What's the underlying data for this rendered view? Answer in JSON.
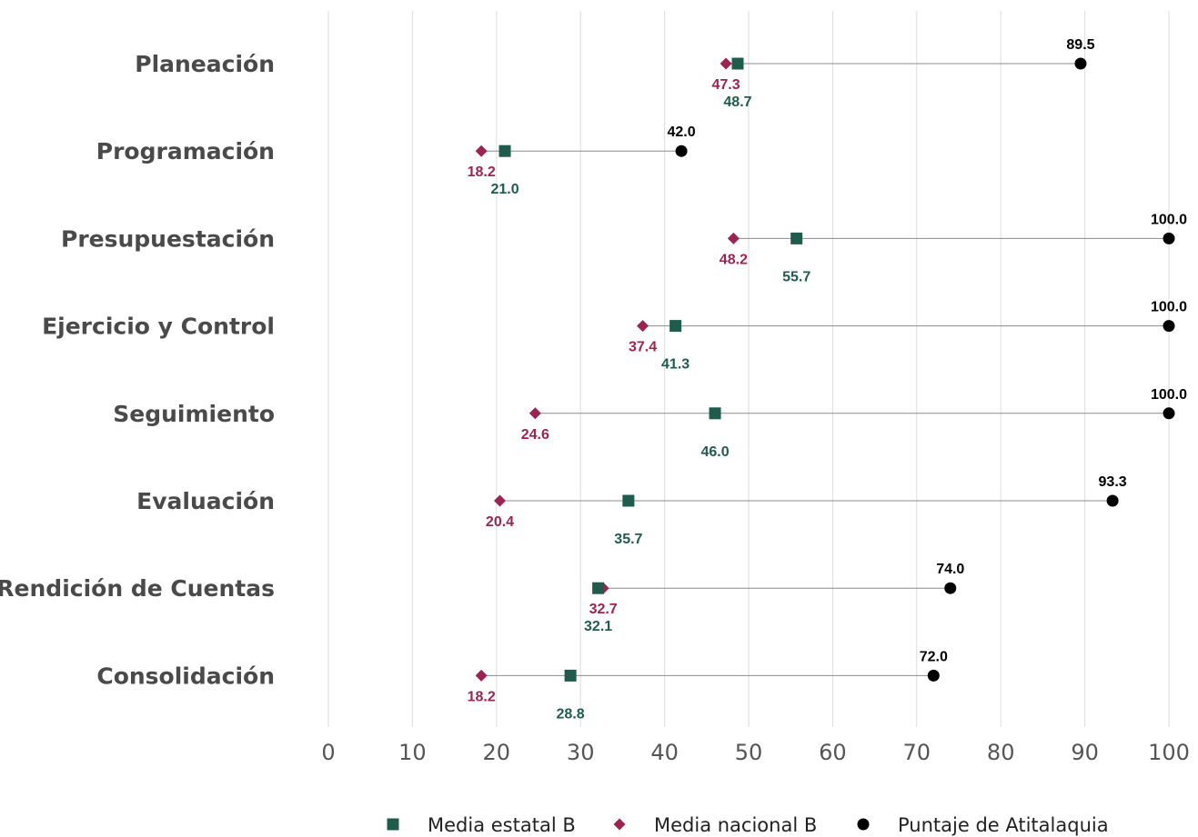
{
  "chart_data": {
    "type": "scatter",
    "categories": [
      "Planeación",
      "Programación",
      "Presupuestación",
      "Ejercicio y Control",
      "Seguimiento",
      "Evaluación",
      "Rendición de Cuentas",
      "Consolidación"
    ],
    "series": [
      {
        "name": "Media estatal B",
        "values": [
          48.7,
          21.0,
          55.7,
          41.3,
          46.0,
          35.7,
          32.1,
          28.8
        ],
        "color": "#1f5c4c",
        "marker": "square"
      },
      {
        "name": "Media nacional B",
        "values": [
          47.3,
          18.2,
          48.2,
          37.4,
          24.6,
          20.4,
          32.7,
          18.2
        ],
        "color": "#9b2452",
        "marker": "diamond"
      },
      {
        "name": "Puntaje de Atitalaquia",
        "values": [
          89.5,
          42.0,
          100.0,
          100.0,
          100.0,
          93.3,
          74.0,
          72.0
        ],
        "color": "#000000",
        "marker": "circle"
      }
    ],
    "x_ticks": [
      "0",
      "10",
      "20",
      "30",
      "40",
      "50",
      "60",
      "70",
      "80",
      "90",
      "100"
    ],
    "data_labels": {
      "estatal": [
        "48.7",
        "21.0",
        "55.7",
        "41.3",
        "46.0",
        "35.7",
        "32.1",
        "28.8"
      ],
      "nacional": [
        "47.3",
        "18.2",
        "48.2",
        "37.4",
        "24.6",
        "20.4",
        "32.7",
        "18.2"
      ],
      "puntaje": [
        "89.5",
        "42.0",
        "100.0",
        "100.0",
        "100.0",
        "93.3",
        "74.0",
        "72.0"
      ]
    },
    "xlim": [
      0,
      100
    ],
    "grid": "vertical",
    "legend_position": "bottom",
    "title": "",
    "xlabel": "",
    "ylabel": ""
  }
}
